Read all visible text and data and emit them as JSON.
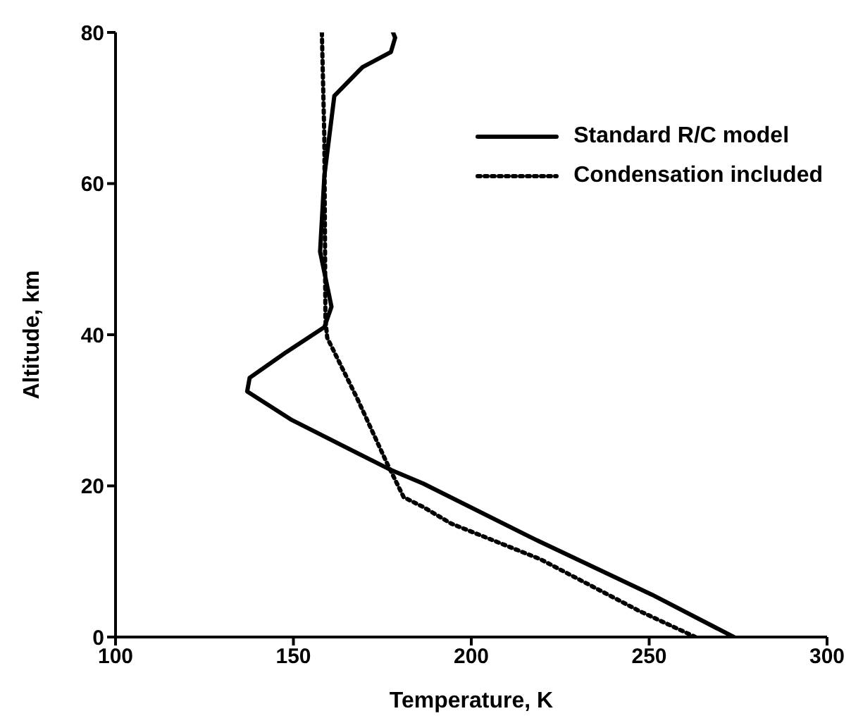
{
  "chart_data": {
    "type": "line",
    "xlabel": "Temperature, K",
    "ylabel": "Altitude, km",
    "xlim": [
      100,
      300
    ],
    "ylim": [
      0,
      80
    ],
    "xticks": [
      100,
      150,
      200,
      250,
      300
    ],
    "yticks": [
      0,
      20,
      40,
      60,
      80
    ],
    "legend": "top right",
    "series": [
      {
        "name": "Standard R/C model",
        "color": "#000000",
        "line_style": "solid",
        "x": [
          273.8,
          250.8,
          218,
          186.5,
          177,
          149.6,
          137,
          137.7,
          148,
          158.7,
          160.7,
          157.5,
          158.7,
          161.5,
          169.4,
          177.4,
          178.6,
          178
        ],
        "values": [
          0,
          5.6,
          12.9,
          20.3,
          22.2,
          28.7,
          32.5,
          34.3,
          37.7,
          41,
          43.7,
          51,
          61,
          71.6,
          75.4,
          77.4,
          79.3,
          80
        ]
      },
      {
        "name": "Condensation included",
        "color": "#000000",
        "line_style": "dotted",
        "x": [
          263,
          247,
          219.4,
          194.4,
          186.5,
          181,
          176,
          168,
          159.5,
          159,
          158.7,
          158
        ],
        "values": [
          0,
          3.5,
          10.3,
          15,
          17.2,
          18.5,
          23.3,
          31.5,
          39.6,
          42,
          66,
          80
        ]
      }
    ]
  }
}
